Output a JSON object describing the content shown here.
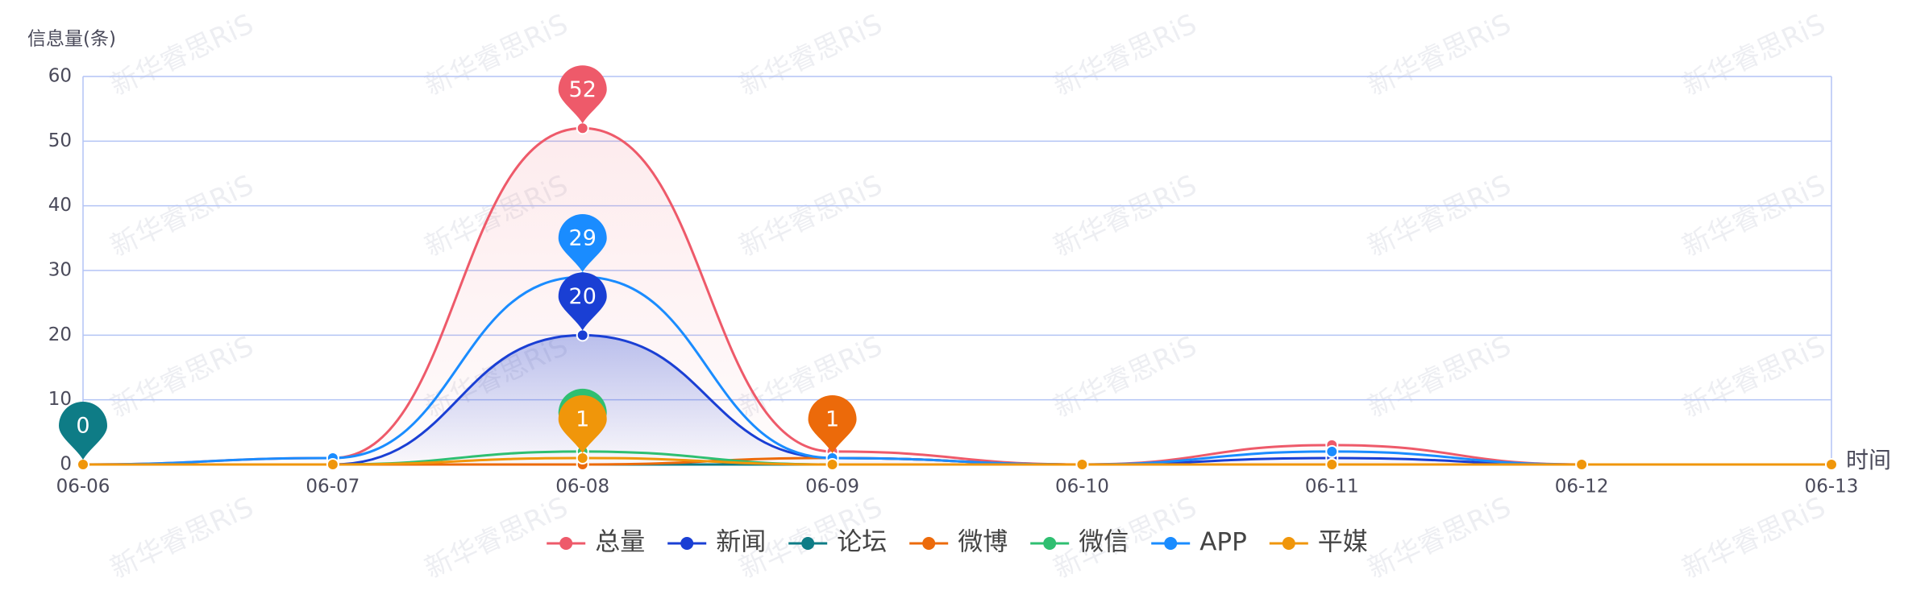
{
  "chart_data": {
    "type": "line",
    "y_label": "信息量(条)",
    "x_label": "时间",
    "watermark": "新华睿思RiS",
    "categories": [
      "06-06",
      "06-07",
      "06-08",
      "06-09",
      "06-10",
      "06-11",
      "06-12",
      "06-13"
    ],
    "ylim": [
      0,
      60
    ],
    "yticks": [
      0,
      10,
      20,
      30,
      40,
      50,
      60
    ],
    "grid": true,
    "series": [
      {
        "name": "总量",
        "color": "#ee5a6a",
        "area": true,
        "values": [
          0,
          1,
          52,
          2,
          0,
          3,
          0,
          0
        ]
      },
      {
        "name": "新闻",
        "color": "#1a3fd4",
        "area": true,
        "values": [
          0,
          0,
          20,
          1,
          0,
          1,
          0,
          0
        ]
      },
      {
        "name": "论坛",
        "color": "#0e7c86",
        "values": [
          0,
          0,
          0,
          0,
          0,
          0,
          0,
          0
        ]
      },
      {
        "name": "微博",
        "color": "#ec6a0a",
        "values": [
          0,
          0,
          0,
          1,
          0,
          0,
          0,
          0
        ]
      },
      {
        "name": "微信",
        "color": "#2fbf71",
        "values": [
          0,
          0,
          2,
          0,
          0,
          0,
          0,
          0
        ]
      },
      {
        "name": "APP",
        "color": "#1a8cff",
        "values": [
          0,
          1,
          29,
          1,
          0,
          2,
          0,
          0
        ]
      },
      {
        "name": "平媒",
        "color": "#f0960a",
        "values": [
          0,
          0,
          1,
          0,
          0,
          0,
          0,
          0
        ]
      }
    ]
  }
}
